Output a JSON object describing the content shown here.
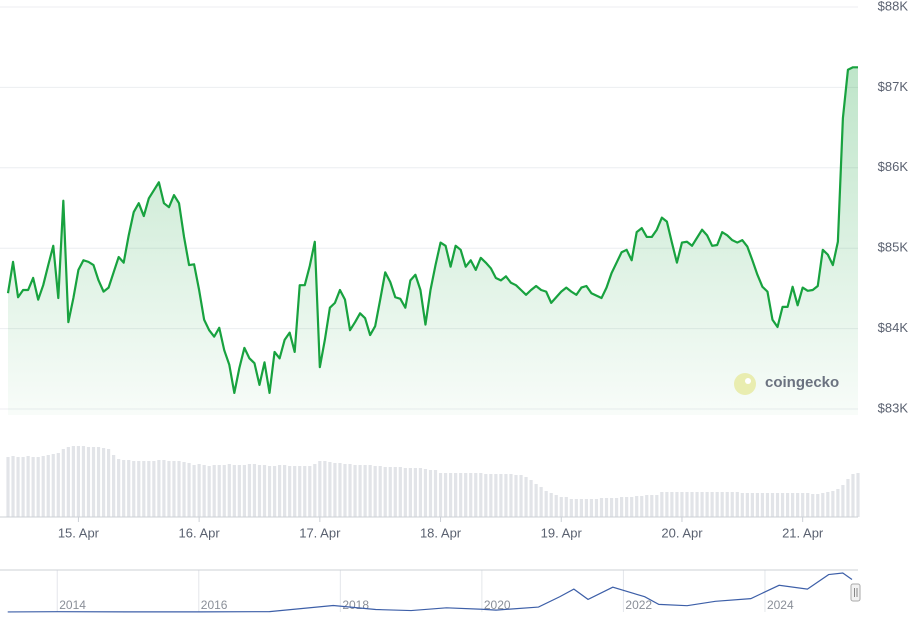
{
  "chart_data": [
    {
      "type": "price-volume",
      "color": "#18a23f",
      "volume_color": "#e2e4e8",
      "xlim": [
        10,
        179
      ],
      "xticks": [
        {
          "value": 24,
          "label": "15. Apr"
        },
        {
          "value": 48,
          "label": "16. Apr"
        },
        {
          "value": 72,
          "label": "17. Apr"
        },
        {
          "value": 96,
          "label": "18. Apr"
        },
        {
          "value": 120,
          "label": "19. Apr"
        },
        {
          "value": 144,
          "label": "20. Apr"
        },
        {
          "value": 168,
          "label": "21. Apr"
        }
      ],
      "ylim": [
        83000,
        88000
      ],
      "yticks": [
        {
          "value": 83000,
          "label": "$83K"
        },
        {
          "value": 84000,
          "label": "$84K"
        },
        {
          "value": 85000,
          "label": "$85K"
        },
        {
          "value": 86000,
          "label": "$86K"
        },
        {
          "value": 87000,
          "label": "$87K"
        },
        {
          "value": 88000,
          "label": "$88K"
        }
      ],
      "grid": true,
      "volume_lim": [
        0,
        100
      ],
      "x": [
        10,
        11,
        12,
        13,
        14,
        15,
        16,
        17,
        18,
        19,
        20,
        21,
        22,
        23,
        24,
        25,
        26,
        27,
        28,
        29,
        30,
        31,
        32,
        33,
        34,
        35,
        36,
        37,
        38,
        39,
        40,
        41,
        42,
        43,
        44,
        45,
        46,
        47,
        48,
        49,
        50,
        51,
        52,
        53,
        54,
        55,
        56,
        57,
        58,
        59,
        60,
        61,
        62,
        63,
        64,
        65,
        66,
        67,
        68,
        69,
        70,
        71,
        72,
        73,
        74,
        75,
        76,
        77,
        78,
        79,
        80,
        81,
        82,
        83,
        84,
        85,
        86,
        87,
        88,
        89,
        90,
        91,
        92,
        93,
        94,
        95,
        96,
        97,
        98,
        99,
        100,
        101,
        102,
        103,
        104,
        105,
        106,
        107,
        108,
        109,
        110,
        111,
        112,
        113,
        114,
        115,
        116,
        117,
        118,
        119,
        120,
        121,
        122,
        123,
        124,
        125,
        126,
        127,
        128,
        129,
        130,
        131,
        132,
        133,
        134,
        135,
        136,
        137,
        138,
        139,
        140,
        141,
        142,
        143,
        144,
        145,
        146,
        147,
        148,
        149,
        150,
        151,
        152,
        153,
        154,
        155,
        156,
        157,
        158,
        159,
        160,
        161,
        162,
        163,
        164,
        165,
        166,
        167,
        168,
        169,
        170,
        171,
        172,
        173,
        174,
        175,
        176,
        177,
        178,
        179
      ],
      "values": [
        84440,
        84830,
        84390,
        84480,
        84480,
        84630,
        84360,
        84540,
        84790,
        85030,
        84380,
        85590,
        84080,
        84380,
        84730,
        84850,
        84830,
        84790,
        84600,
        84460,
        84510,
        84700,
        84890,
        84820,
        85160,
        85450,
        85560,
        85400,
        85620,
        85720,
        85820,
        85560,
        85510,
        85660,
        85560,
        85140,
        84790,
        84800,
        84480,
        84110,
        83980,
        83900,
        84010,
        83730,
        83550,
        83200,
        83510,
        83760,
        83630,
        83570,
        83300,
        83580,
        83200,
        83710,
        83630,
        83860,
        83950,
        83710,
        84540,
        84540,
        84780,
        85080,
        83520,
        83860,
        84260,
        84320,
        84480,
        84360,
        83980,
        84080,
        84190,
        84130,
        83920,
        84030,
        84360,
        84700,
        84580,
        84390,
        84370,
        84260,
        84600,
        84670,
        84480,
        84050,
        84480,
        84790,
        85070,
        85030,
        84770,
        85030,
        84980,
        84770,
        84850,
        84730,
        84880,
        84820,
        84750,
        84630,
        84600,
        84650,
        84570,
        84540,
        84480,
        84420,
        84480,
        84530,
        84480,
        84460,
        84320,
        84390,
        84460,
        84510,
        84460,
        84420,
        84510,
        84530,
        84440,
        84410,
        84380,
        84510,
        84690,
        84820,
        84950,
        84980,
        84850,
        85200,
        85250,
        85140,
        85140,
        85230,
        85380,
        85330,
        85070,
        84820,
        85070,
        85080,
        85030,
        85130,
        85230,
        85160,
        85030,
        85040,
        85200,
        85160,
        85100,
        85070,
        85100,
        85020,
        84850,
        84670,
        84520,
        84460,
        84110,
        84020,
        84270,
        84270,
        84520,
        84290,
        84510,
        84470,
        84480,
        84530,
        84980,
        84920,
        84790,
        85080,
        86620,
        87220,
        87250,
        87250
      ],
      "volume": [
        60,
        61,
        60,
        60,
        61,
        60,
        60,
        61,
        62,
        63,
        64,
        68,
        70,
        71,
        71,
        71,
        70,
        70,
        70,
        69,
        68,
        62,
        58,
        57,
        57,
        56,
        56,
        56,
        56,
        56,
        57,
        57,
        56,
        56,
        56,
        55,
        54,
        52,
        53,
        52,
        51,
        52,
        52,
        52,
        53,
        52,
        52,
        52,
        53,
        53,
        52,
        52,
        51,
        51,
        52,
        52,
        51,
        51,
        51,
        51,
        51,
        53,
        56,
        56,
        55,
        54,
        54,
        53,
        53,
        52,
        52,
        52,
        52,
        51,
        51,
        50,
        50,
        50,
        50,
        49,
        49,
        49,
        49,
        48,
        47,
        47,
        44,
        44,
        44,
        44,
        44,
        44,
        44,
        44,
        44,
        43,
        43,
        43,
        43,
        43,
        43,
        42,
        42,
        40,
        37,
        33,
        30,
        26,
        24,
        22,
        20,
        20,
        18,
        18,
        18,
        18,
        18,
        18,
        19,
        19,
        19,
        19,
        20,
        20,
        20,
        21,
        21,
        22,
        22,
        22,
        25,
        25,
        25,
        25,
        25,
        25,
        25,
        25,
        25,
        25,
        25,
        25,
        25,
        25,
        25,
        25,
        24,
        24,
        24,
        24,
        24,
        24,
        24,
        24,
        24,
        24,
        24,
        24,
        24,
        24,
        23,
        23,
        24,
        25,
        26,
        28,
        32,
        38,
        43,
        44
      ]
    },
    {
      "type": "line",
      "color": "#3d5fa8",
      "xlim": [
        2013.29,
        2025.23
      ],
      "xticks": [
        2014,
        2016,
        2018,
        2020,
        2022,
        2024
      ],
      "ylim": [
        0,
        110000
      ],
      "x": [
        2013.3,
        2014,
        2015,
        2016,
        2017,
        2017.9,
        2018.5,
        2019,
        2019.5,
        2020,
        2020.2,
        2020.8,
        2021.1,
        2021.3,
        2021.5,
        2021.85,
        2022.3,
        2022.5,
        2022.9,
        2023.3,
        2023.8,
        2024.2,
        2024.6,
        2024.9,
        2025.1,
        2025.23
      ],
      "values": [
        100,
        800,
        250,
        430,
        1000,
        17000,
        6500,
        3800,
        11000,
        7200,
        5000,
        13000,
        40000,
        60000,
        33000,
        65000,
        40000,
        20000,
        16500,
        28000,
        35000,
        70000,
        60000,
        98000,
        102000,
        85000
      ]
    }
  ],
  "watermark": "coingecko"
}
